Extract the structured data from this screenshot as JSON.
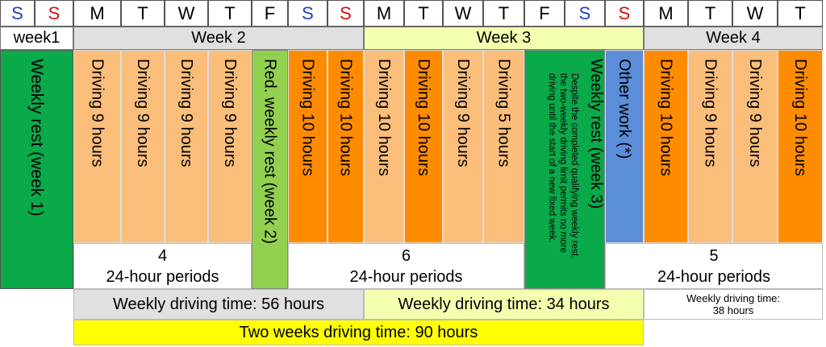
{
  "days": [
    "S",
    "S",
    "M",
    "T",
    "W",
    "T",
    "F",
    "S",
    "S",
    "M",
    "T",
    "W",
    "T",
    "F",
    "S",
    "S",
    "M",
    "T",
    "W",
    "T"
  ],
  "weeks": {
    "w1": "week1",
    "w2": "Week 2",
    "w3": "Week 3",
    "w4": "Week 4"
  },
  "cells": {
    "rest1": "Weekly rest (week 1)",
    "d1": "Driving 9 hours",
    "d2": "Driving 9 hours",
    "d3": "Driving 9 hours",
    "d4": "Driving 9 hours",
    "red_rest": "Red. weekly rest (week 2)",
    "d5": "Driving 10 hours",
    "d6": "Driving 10 hours",
    "d7": "Driving 10 hours",
    "d8": "Driving 10 hours",
    "d9": "Driving 9 hours",
    "d10": "Driving 5 hours",
    "rest3": "Weekly rest (week 3)",
    "rest3_note": "Despite the completed qualifying weekly rest, the two-weekly driving limit permits no more driving until the start of a new fixed week.",
    "other": "Other work (*)",
    "d11": "Driving 10 hours",
    "d12": "Driving 9 hours",
    "d13": "Driving 9 hours",
    "d14": "Driving 10 hours"
  },
  "periods": {
    "p1_num": "4",
    "p1_label": "24-hour periods",
    "p2_num": "6",
    "p2_label": "24-hour periods",
    "p3_num": "5",
    "p3_label": "24-hour periods"
  },
  "weekly": {
    "w2": "Weekly driving time: 56 hours",
    "w3": "Weekly driving time: 34 hours",
    "w4a": "Weekly driving time:",
    "w4b": "38 hours"
  },
  "two_weeks": "Two weeks driving time: 90 hours",
  "colors": {
    "green": "#0aa94a",
    "light_green": "#92d050",
    "orange": "#ff8c00",
    "light_orange": "#fbbe7a",
    "blue": "#5b8dd9",
    "yellow": "#ffff00",
    "light_yellow": "#f5ffb0",
    "gray": "#e0e0e0"
  }
}
